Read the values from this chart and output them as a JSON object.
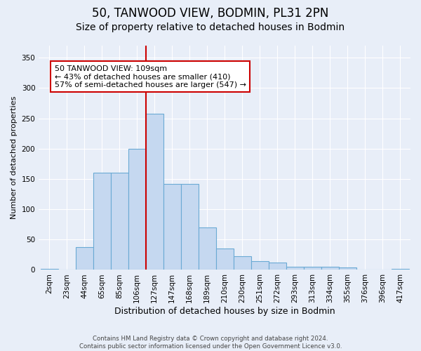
{
  "title1": "50, TANWOOD VIEW, BODMIN, PL31 2PN",
  "title2": "Size of property relative to detached houses in Bodmin",
  "xlabel": "Distribution of detached houses by size in Bodmin",
  "ylabel": "Number of detached properties",
  "footer1": "Contains HM Land Registry data © Crown copyright and database right 2024.",
  "footer2": "Contains public sector information licensed under the Open Government Licence v3.0.",
  "categories": [
    "2sqm",
    "23sqm",
    "44sqm",
    "65sqm",
    "85sqm",
    "106sqm",
    "127sqm",
    "147sqm",
    "168sqm",
    "189sqm",
    "210sqm",
    "230sqm",
    "251sqm",
    "272sqm",
    "293sqm",
    "313sqm",
    "334sqm",
    "355sqm",
    "376sqm",
    "396sqm",
    "417sqm"
  ],
  "values": [
    2,
    0,
    38,
    160,
    160,
    200,
    258,
    142,
    142,
    70,
    35,
    22,
    15,
    12,
    5,
    5,
    5,
    4,
    0,
    1,
    2
  ],
  "bar_color": "#c5d8f0",
  "bar_edge_color": "#6aaad4",
  "vline_x": 5.5,
  "vline_color": "#cc0000",
  "annotation_line1": "50 TANWOOD VIEW: 109sqm",
  "annotation_line2": "← 43% of detached houses are smaller (410)",
  "annotation_line3": "57% of semi-detached houses are larger (547) →",
  "annotation_box_color": "#ffffff",
  "annotation_box_edge": "#cc0000",
  "ylim": [
    0,
    370
  ],
  "yticks": [
    0,
    50,
    100,
    150,
    200,
    250,
    300,
    350
  ],
  "bg_color": "#e8eef8",
  "grid_color": "#ffffff",
  "title1_fontsize": 12,
  "title2_fontsize": 10,
  "xlabel_fontsize": 9,
  "ylabel_fontsize": 8,
  "tick_fontsize": 7.5,
  "annot_fontsize": 8
}
